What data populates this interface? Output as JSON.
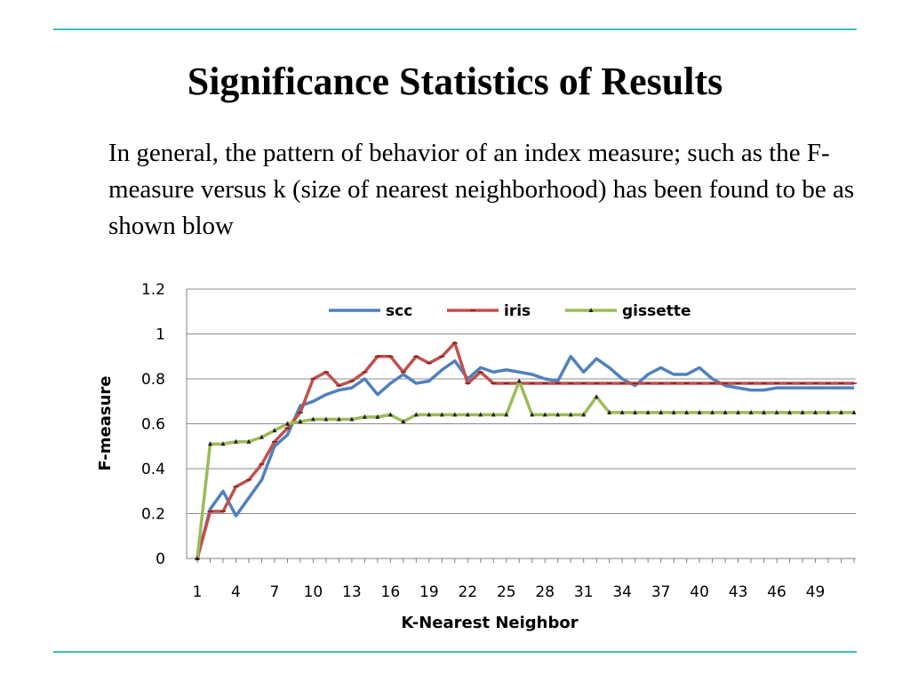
{
  "slide": {
    "title": "Significance Statistics of Results",
    "body": "In general, the pattern of behavior of an index measure; such as the F-measure versus k (size of nearest neighborhood) has been found to be as shown blow"
  },
  "chart_data": {
    "type": "line",
    "xlabel": "K-Nearest Neighbor",
    "ylabel": "F-measure",
    "ylim": [
      0,
      1.2
    ],
    "yticks": [
      "0",
      "0.2",
      "0.4",
      "0.6",
      "0.8",
      "1",
      "1.2"
    ],
    "xlim": [
      1,
      52
    ],
    "xticks": [
      "1",
      "4",
      "7",
      "10",
      "13",
      "16",
      "19",
      "22",
      "25",
      "28",
      "31",
      "34",
      "37",
      "40",
      "43",
      "46",
      "49"
    ],
    "grid": "horizontal",
    "legend": "top-center",
    "x": [
      1,
      2,
      3,
      4,
      5,
      6,
      7,
      8,
      9,
      10,
      11,
      12,
      13,
      14,
      15,
      16,
      17,
      18,
      19,
      20,
      21,
      22,
      23,
      24,
      25,
      26,
      27,
      28,
      29,
      30,
      31,
      32,
      33,
      34,
      35,
      36,
      37,
      38,
      39,
      40,
      41,
      42,
      43,
      44,
      45,
      46,
      47,
      48,
      49,
      50,
      51,
      52
    ],
    "series": [
      {
        "name": "scc",
        "color": "#4f81bd",
        "marker": "none",
        "values": [
          0,
          0.22,
          0.3,
          0.19,
          0.27,
          0.35,
          0.5,
          0.55,
          0.68,
          0.7,
          0.73,
          0.75,
          0.76,
          0.8,
          0.73,
          0.78,
          0.82,
          0.78,
          0.79,
          0.84,
          0.88,
          0.8,
          0.85,
          0.83,
          0.84,
          0.83,
          0.82,
          0.8,
          0.79,
          0.9,
          0.83,
          0.89,
          0.85,
          0.8,
          0.77,
          0.82,
          0.85,
          0.82,
          0.82,
          0.85,
          0.8,
          0.77,
          0.76,
          0.75,
          0.75,
          0.76,
          0.76,
          0.76,
          0.76,
          0.76,
          0.76,
          0.76
        ]
      },
      {
        "name": "iris",
        "color": "#c0504d",
        "marker": "dash",
        "values": [
          0,
          0.21,
          0.21,
          0.32,
          0.35,
          0.42,
          0.52,
          0.58,
          0.65,
          0.8,
          0.83,
          0.77,
          0.79,
          0.83,
          0.9,
          0.9,
          0.83,
          0.9,
          0.87,
          0.9,
          0.96,
          0.78,
          0.83,
          0.78,
          0.78,
          0.78,
          0.78,
          0.78,
          0.78,
          0.78,
          0.78,
          0.78,
          0.78,
          0.78,
          0.78,
          0.78,
          0.78,
          0.78,
          0.78,
          0.78,
          0.78,
          0.78,
          0.78,
          0.78,
          0.78,
          0.78,
          0.78,
          0.78,
          0.78,
          0.78,
          0.78,
          0.78
        ]
      },
      {
        "name": "gissette",
        "color": "#9bbb59",
        "marker": "triangle",
        "values": [
          0,
          0.51,
          0.51,
          0.52,
          0.52,
          0.54,
          0.57,
          0.6,
          0.61,
          0.62,
          0.62,
          0.62,
          0.62,
          0.63,
          0.63,
          0.64,
          0.61,
          0.64,
          0.64,
          0.64,
          0.64,
          0.64,
          0.64,
          0.64,
          0.64,
          0.79,
          0.64,
          0.64,
          0.64,
          0.64,
          0.64,
          0.72,
          0.65,
          0.65,
          0.65,
          0.65,
          0.65,
          0.65,
          0.65,
          0.65,
          0.65,
          0.65,
          0.65,
          0.65,
          0.65,
          0.65,
          0.65,
          0.65,
          0.65,
          0.65,
          0.65,
          0.65
        ]
      }
    ]
  }
}
